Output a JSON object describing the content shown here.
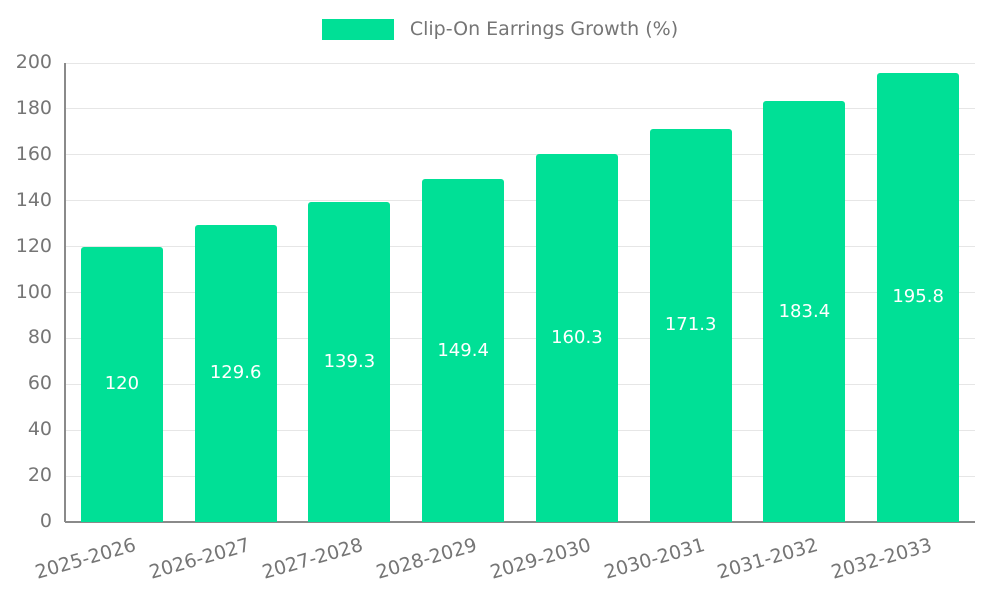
{
  "chart_data": {
    "type": "bar",
    "title": "Clip-On Earrings Growth (%)",
    "categories": [
      "2025-2026",
      "2026-2027",
      "2027-2028",
      "2028-2029",
      "2029-2030",
      "2030-2031",
      "2031-2032",
      "2032-2033"
    ],
    "values": [
      120,
      129.6,
      139.3,
      149.4,
      160.3,
      171.3,
      183.4,
      195.8
    ],
    "series": [
      {
        "name": "Clip-On Earrings Growth (%)",
        "values": [
          120,
          129.6,
          139.3,
          149.4,
          160.3,
          171.3,
          183.4,
          195.8
        ]
      }
    ],
    "xlabel": "",
    "ylabel": "",
    "ylim": [
      0,
      200
    ],
    "ytick_step": 20,
    "grid": true,
    "legend_position": "top-center",
    "bar_color": "#00e096",
    "value_label_color": "#ffffff",
    "axis_text_color": "#757575",
    "grid_color": "#e6e6e6",
    "axis_line_color": "#8a8a8a"
  }
}
